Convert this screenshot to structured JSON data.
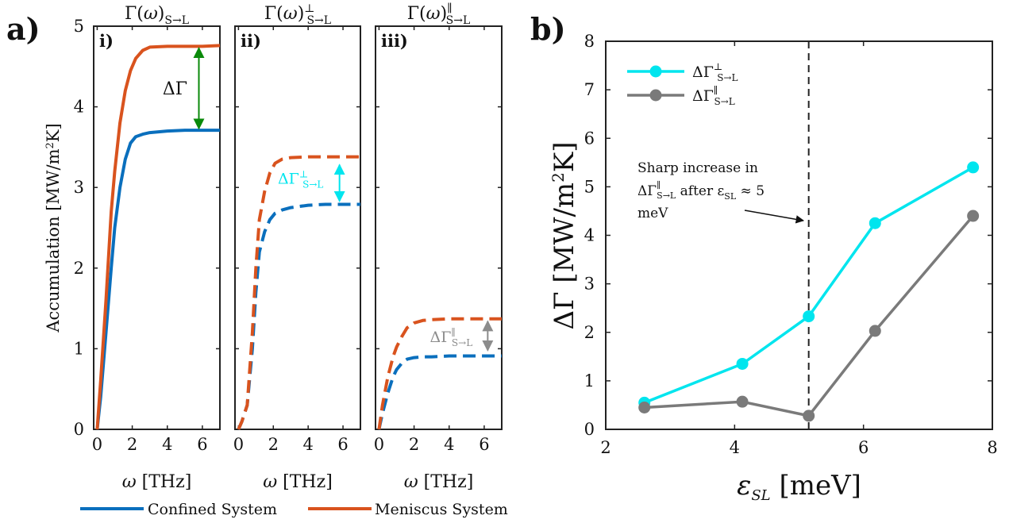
{
  "figure": {
    "panel_a_label": "a)",
    "panel_b_label": "b)"
  },
  "colors": {
    "confined": "#0a6fbd",
    "meniscus": "#d9531e",
    "cyan": "#00e5ee",
    "gray": "#7a7a7a",
    "green": "#0a8a0a",
    "arrow_gray": "#8c8c8c"
  },
  "legend": {
    "confined": "Confined System",
    "meniscus": "Meniscus System"
  },
  "chart_data": [
    {
      "type": "line",
      "panel": "i)",
      "title": "Γ(ω)S→L",
      "xlabel": "ω [THz]",
      "ylabel": "Accumulation [MW/m²K]",
      "xlim": [
        -0.2,
        7
      ],
      "ylim": [
        0,
        5
      ],
      "xticks": [
        "0",
        "2",
        "4",
        "6"
      ],
      "yticks": [
        "0",
        "1",
        "2",
        "3",
        "4",
        "5"
      ],
      "annotation": "ΔΓ",
      "series": [
        {
          "name": "Confined System",
          "style": "solid",
          "x": [
            0,
            0.2,
            0.5,
            0.8,
            1.0,
            1.3,
            1.6,
            1.9,
            2.2,
            2.6,
            3.0,
            4.0,
            5.0,
            6.0,
            7.0
          ],
          "y": [
            0,
            0.4,
            1.2,
            2.0,
            2.5,
            3.0,
            3.35,
            3.55,
            3.63,
            3.66,
            3.68,
            3.7,
            3.71,
            3.71,
            3.71
          ]
        },
        {
          "name": "Meniscus System",
          "style": "solid",
          "x": [
            0,
            0.2,
            0.5,
            0.8,
            1.0,
            1.3,
            1.6,
            1.9,
            2.2,
            2.6,
            3.0,
            4.0,
            5.0,
            6.0,
            7.0
          ],
          "y": [
            0,
            0.6,
            1.6,
            2.7,
            3.2,
            3.8,
            4.2,
            4.45,
            4.6,
            4.7,
            4.74,
            4.75,
            4.75,
            4.75,
            4.76
          ]
        }
      ]
    },
    {
      "type": "line",
      "panel": "ii)",
      "title": "Γ(ω)⊥S→L",
      "xlabel": "ω [THz]",
      "xlim": [
        -0.2,
        7
      ],
      "ylim": [
        0,
        5
      ],
      "xticks": [
        "0",
        "2",
        "4",
        "6"
      ],
      "annotation": "ΔΓ⊥S→L",
      "series": [
        {
          "name": "Confined System",
          "style": "dashed",
          "x": [
            0,
            0.2,
            0.5,
            0.8,
            1.0,
            1.2,
            1.5,
            1.8,
            2.1,
            2.5,
            3.0,
            4.0,
            5.0,
            6.0,
            7.0
          ],
          "y": [
            0,
            0.1,
            0.3,
            1.0,
            1.7,
            2.2,
            2.45,
            2.6,
            2.68,
            2.72,
            2.75,
            2.78,
            2.79,
            2.79,
            2.79
          ]
        },
        {
          "name": "Meniscus System",
          "style": "dashed",
          "x": [
            0,
            0.2,
            0.5,
            0.8,
            1.0,
            1.2,
            1.5,
            1.8,
            2.1,
            2.5,
            3.0,
            4.0,
            5.0,
            6.0,
            7.0
          ],
          "y": [
            0,
            0.1,
            0.3,
            1.2,
            2.0,
            2.6,
            2.95,
            3.18,
            3.3,
            3.35,
            3.37,
            3.38,
            3.38,
            3.38,
            3.38
          ]
        }
      ]
    },
    {
      "type": "line",
      "panel": "iii)",
      "title": "Γ(ω)∥S→L",
      "xlabel": "ω [THz]",
      "xlim": [
        -0.2,
        7
      ],
      "ylim": [
        0,
        5
      ],
      "xticks": [
        "0",
        "2",
        "4",
        "6"
      ],
      "annotation": "ΔΓ∥S→L",
      "series": [
        {
          "name": "Confined System",
          "style": "dashed",
          "x": [
            0,
            0.2,
            0.5,
            0.8,
            1.0,
            1.3,
            1.6,
            2.0,
            2.5,
            3.0,
            4.0,
            5.0,
            6.0,
            7.0
          ],
          "y": [
            0,
            0.2,
            0.45,
            0.65,
            0.74,
            0.82,
            0.87,
            0.89,
            0.9,
            0.9,
            0.91,
            0.91,
            0.91,
            0.91
          ]
        },
        {
          "name": "Meniscus System",
          "style": "dashed",
          "x": [
            0,
            0.2,
            0.5,
            0.8,
            1.0,
            1.3,
            1.6,
            2.0,
            2.5,
            3.0,
            4.0,
            5.0,
            6.0,
            7.0
          ],
          "y": [
            0,
            0.3,
            0.65,
            0.9,
            1.02,
            1.15,
            1.26,
            1.32,
            1.35,
            1.36,
            1.37,
            1.37,
            1.37,
            1.37
          ]
        }
      ]
    },
    {
      "type": "line",
      "panel": "b)",
      "title": "",
      "xlabel": "εSL [meV]",
      "ylabel": "ΔΓ [MW/m²K]",
      "xlim": [
        2,
        8
      ],
      "ylim": [
        0,
        8
      ],
      "xticks": [
        "2",
        "4",
        "6",
        "8"
      ],
      "yticks": [
        "0",
        "1",
        "2",
        "3",
        "4",
        "5",
        "6",
        "7",
        "8"
      ],
      "vline": 5.15,
      "legend_position": "top-left",
      "annotation": {
        "line1": "Sharp increase in",
        "line2_a": "ΔΓ",
        "line2_sup": "∥",
        "line2_sub": "S→L",
        "line2_b": " after ε",
        "line2_b_sub": "SL",
        "line2_c": " ≈ 5",
        "line3": "meV"
      },
      "series": [
        {
          "name": "ΔΓ⊥S→L",
          "x": [
            2.6,
            4.12,
            5.15,
            6.18,
            7.7
          ],
          "y": [
            0.55,
            1.35,
            2.33,
            4.25,
            5.4
          ]
        },
        {
          "name": "ΔΓ∥S→L",
          "x": [
            2.6,
            4.12,
            5.15,
            6.18,
            7.7
          ],
          "y": [
            0.45,
            0.57,
            0.28,
            2.03,
            4.4
          ]
        }
      ]
    }
  ]
}
